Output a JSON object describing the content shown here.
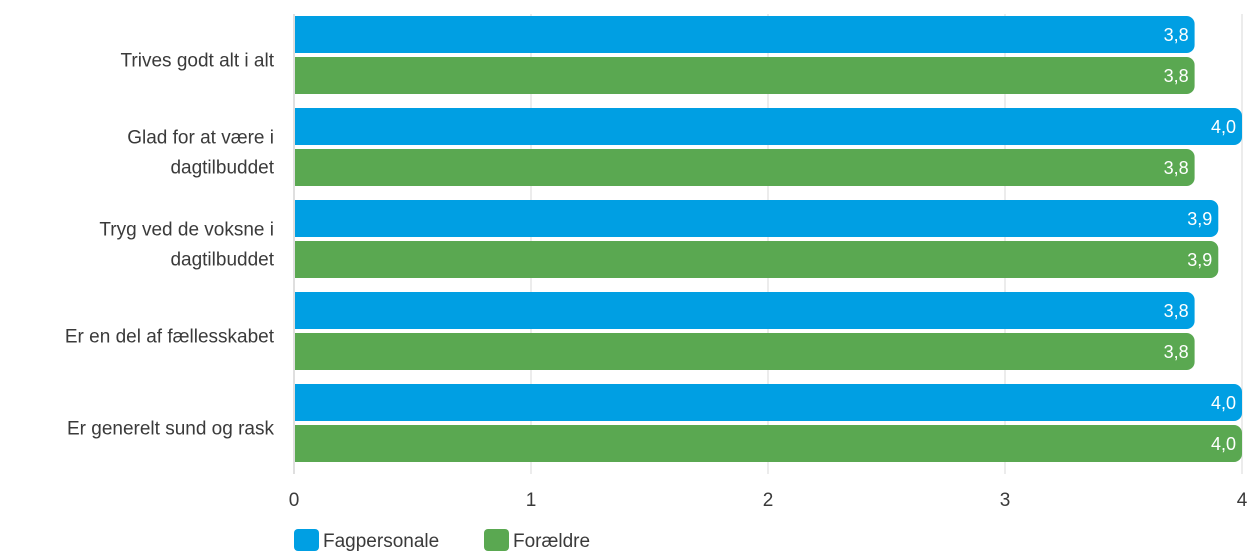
{
  "chart_data": {
    "type": "bar",
    "orientation": "horizontal",
    "title": "",
    "xlabel": "",
    "ylabel": "",
    "xlim": [
      0,
      4
    ],
    "x_ticks": [
      0,
      1,
      2,
      3,
      4
    ],
    "x_tick_labels": [
      "0",
      "1",
      "2",
      "3",
      "4"
    ],
    "grid": true,
    "legend_position": "bottom-left",
    "categories": [
      [
        "Trives godt alt i alt"
      ],
      [
        "Glad for at være i",
        "dagtilbuddet"
      ],
      [
        "Tryg ved de voksne i",
        "dagtilbuddet"
      ],
      [
        "Er en del af fællesskabet"
      ],
      [
        "Er generelt sund og rask"
      ]
    ],
    "series": [
      {
        "name": "Fagpersonale",
        "color": "#009fe3",
        "values": [
          3.8,
          4.0,
          3.9,
          3.8,
          4.0
        ],
        "labels": [
          "3,8",
          "4,0",
          "3,9",
          "3,8",
          "4,0"
        ]
      },
      {
        "name": "Forældre",
        "color": "#5aa851",
        "values": [
          3.8,
          3.8,
          3.9,
          3.8,
          4.0
        ],
        "labels": [
          "3,8",
          "3,8",
          "3,9",
          "3,8",
          "4,0"
        ]
      }
    ]
  }
}
